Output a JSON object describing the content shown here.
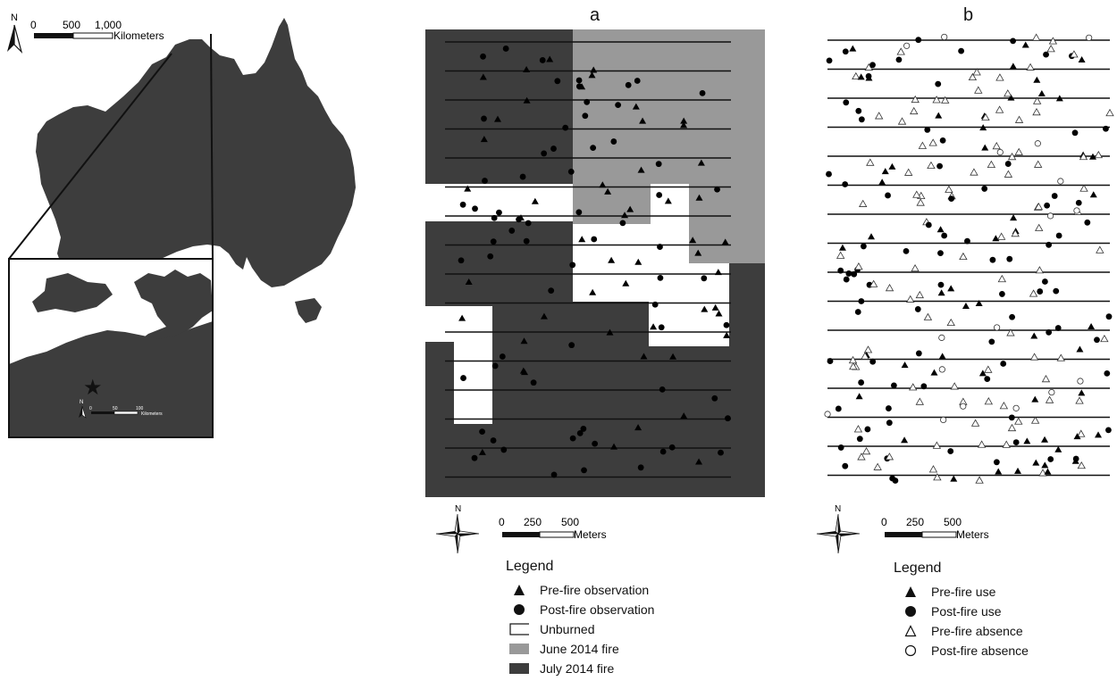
{
  "australia": {
    "north_label": "N",
    "scale_ticks": [
      "0",
      "500",
      "1,000"
    ],
    "scale_unit": "Kilometers",
    "inset": {
      "north_label": "N",
      "scale_ticks": [
        "0",
        "50",
        "100"
      ],
      "scale_unit": "Kilometers"
    }
  },
  "panel_a": {
    "label": "a",
    "north_label": "N",
    "scale_ticks": [
      "0",
      "250",
      "500"
    ],
    "scale_unit": "Meters",
    "legend": {
      "title": "Legend",
      "items": [
        {
          "symbol": "filled-triangle",
          "label": "Pre-fire observation"
        },
        {
          "symbol": "filled-circle",
          "label": "Post-fire observation"
        },
        {
          "symbol": "white-rect",
          "label": "Unburned"
        },
        {
          "symbol": "light-gray-rect",
          "label": "June 2014 fire"
        },
        {
          "symbol": "dark-gray-rect",
          "label": "July 2014 fire"
        }
      ]
    }
  },
  "panel_b": {
    "label": "b",
    "north_label": "N",
    "scale_ticks": [
      "0",
      "250",
      "500"
    ],
    "scale_unit": "Meters",
    "legend": {
      "title": "Legend",
      "items": [
        {
          "symbol": "filled-triangle",
          "label": "Pre-fire use"
        },
        {
          "symbol": "filled-circle",
          "label": "Post-fire use"
        },
        {
          "symbol": "open-triangle",
          "label": "Pre-fire absence"
        },
        {
          "symbol": "open-circle",
          "label": "Post-fire absence"
        }
      ]
    }
  },
  "colors": {
    "land": "#3d3d3d",
    "july_fire": "#3d3d3d",
    "june_fire": "#999999",
    "unburned": "#ffffff"
  }
}
